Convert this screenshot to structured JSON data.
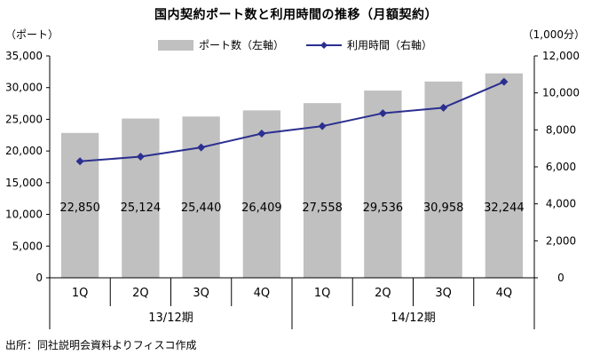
{
  "title": "国内契約ポート数と利用時間の推移（月額契約）",
  "unit_left": "（ポート）",
  "unit_right": "（1,000分）",
  "source": "出所：同社説明会資料よりフィスコ作成",
  "colors": {
    "bar": "#c0c0c0",
    "line": "#2b2f8f",
    "axis": "#000000"
  },
  "chart_data": {
    "type": "bar",
    "categories": [
      "1Q",
      "2Q",
      "3Q",
      "4Q",
      "1Q",
      "2Q",
      "3Q",
      "4Q"
    ],
    "groups": [
      {
        "label": "13/12期",
        "span": [
          0,
          3
        ]
      },
      {
        "label": "14/12期",
        "span": [
          4,
          7
        ]
      }
    ],
    "series": [
      {
        "name": "ポート数（左軸）",
        "type": "bar",
        "axis": "left",
        "values": [
          22850,
          25124,
          25440,
          26409,
          27558,
          29536,
          30958,
          32244
        ],
        "labels": [
          "22,850",
          "25,124",
          "25,440",
          "26,409",
          "27,558",
          "29,536",
          "30,958",
          "32,244"
        ]
      },
      {
        "name": "利用時間（右軸）",
        "type": "line",
        "axis": "right",
        "values": [
          6300,
          6550,
          7050,
          7800,
          8200,
          8900,
          9200,
          10600
        ]
      }
    ],
    "y_left": {
      "lim": [
        0,
        35000
      ],
      "ticks": [
        "0",
        "5,000",
        "10,000",
        "15,000",
        "20,000",
        "25,000",
        "30,000",
        "35,000"
      ]
    },
    "y_right": {
      "lim": [
        0,
        12000
      ],
      "ticks": [
        "0",
        "2,000",
        "4,000",
        "6,000",
        "8,000",
        "10,000",
        "12,000"
      ]
    },
    "grid": false,
    "legend": "top-center"
  }
}
